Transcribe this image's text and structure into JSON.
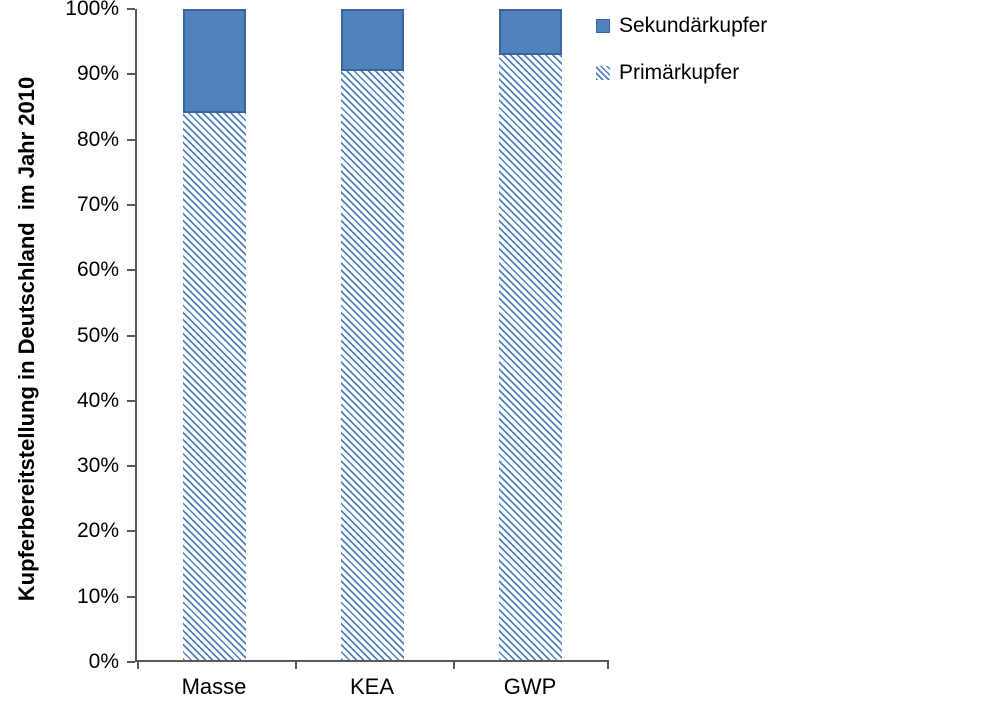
{
  "chart_data": {
    "type": "bar",
    "variant": "stacked-100",
    "title": "",
    "xlabel": "",
    "ylabel": "Kupferbereitstellung in Deutschland  im Jahr 2010",
    "categories": [
      "Masse",
      "KEA",
      "GWP"
    ],
    "series": [
      {
        "name": "Sekundärkupfer",
        "style": "solid",
        "values": [
          16,
          9.5,
          7
        ]
      },
      {
        "name": "Primärkupfer",
        "style": "hatched",
        "values": [
          84,
          90.5,
          93
        ]
      }
    ],
    "unit": "%",
    "ylim": [
      0,
      100
    ],
    "y_ticks": [
      "0%",
      "10%",
      "20%",
      "30%",
      "40%",
      "50%",
      "60%",
      "70%",
      "80%",
      "90%",
      "100%"
    ],
    "grid": false,
    "legend_position": "top-right"
  },
  "colors": {
    "solid_fill": "#4f81bd",
    "solid_border": "#3a669e",
    "hatch_line": "#4f81bd",
    "hatch_bg": "#ffffff",
    "axis": "#595959",
    "text": "#000000"
  }
}
